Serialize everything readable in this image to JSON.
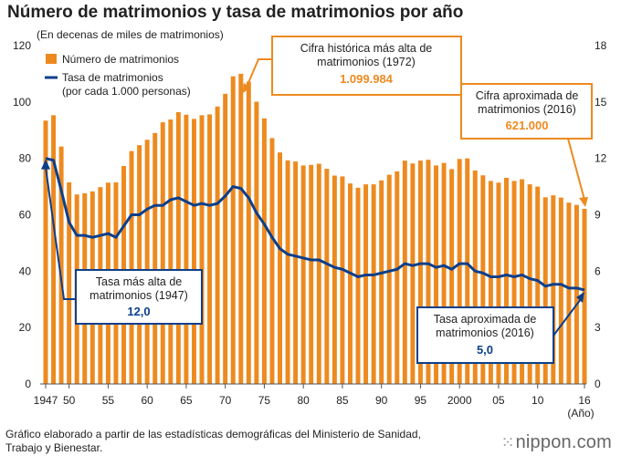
{
  "title": "Número de matrimonios y tasa de matrimonios por año",
  "source": "Gráfico elaborado a partir de las estadísticas demográficas del Ministerio de Sanidad, Trabajo y Bienestar.",
  "brand": "nippon.com",
  "colors": {
    "bar": "#ed8a1f",
    "line": "#0b3f8c",
    "axis": "#555555"
  },
  "chart_data": {
    "type": "bar",
    "title": "Número de matrimonios y tasa de matrimonios por año",
    "ylabel": "(En decenas de miles de matrimonios)",
    "y2label": "",
    "xlabel": "(Año)",
    "ylim": [
      0,
      120
    ],
    "y2lim": [
      0,
      18
    ],
    "yticks": [
      "0",
      "20",
      "40",
      "60",
      "80",
      "100",
      "120"
    ],
    "y2ticks": [
      "0",
      "3",
      "6",
      "9",
      "12",
      "15",
      "18"
    ],
    "x": [
      1947,
      1948,
      1949,
      1950,
      1951,
      1952,
      1953,
      1954,
      1955,
      1956,
      1957,
      1958,
      1959,
      1960,
      1961,
      1962,
      1963,
      1964,
      1965,
      1966,
      1967,
      1968,
      1969,
      1970,
      1971,
      1972,
      1973,
      1974,
      1975,
      1976,
      1977,
      1978,
      1979,
      1980,
      1981,
      1982,
      1983,
      1984,
      1985,
      1986,
      1987,
      1988,
      1989,
      1990,
      1991,
      1992,
      1993,
      1994,
      1995,
      1996,
      1997,
      1998,
      1999,
      2000,
      2001,
      2002,
      2003,
      2004,
      2005,
      2006,
      2007,
      2008,
      2009,
      2010,
      2011,
      2012,
      2013,
      2014,
      2015,
      2016
    ],
    "xtick_labels": [
      {
        "year": 1947,
        "label": "1947"
      },
      {
        "year": 1950,
        "label": "50"
      },
      {
        "year": 1955,
        "label": "55"
      },
      {
        "year": 1960,
        "label": "60"
      },
      {
        "year": 1965,
        "label": "65"
      },
      {
        "year": 1970,
        "label": "70"
      },
      {
        "year": 1975,
        "label": "75"
      },
      {
        "year": 1980,
        "label": "80"
      },
      {
        "year": 1985,
        "label": "85"
      },
      {
        "year": 1990,
        "label": "90"
      },
      {
        "year": 1995,
        "label": "95"
      },
      {
        "year": 2000,
        "label": "2000"
      },
      {
        "year": 2005,
        "label": "05"
      },
      {
        "year": 2010,
        "label": "10"
      },
      {
        "year": 2016,
        "label": "16"
      }
    ],
    "series": [
      {
        "name": "Número de matrimonios",
        "type": "bar",
        "axis": "left",
        "values": [
          93.4,
          95.3,
          84.2,
          71.5,
          67.2,
          67.6,
          68.3,
          69.8,
          71.4,
          71.5,
          77.3,
          82.6,
          84.7,
          86.6,
          89.0,
          92.8,
          93.8,
          96.4,
          95.5,
          94.0,
          95.3,
          95.6,
          98.4,
          102.9,
          109.1,
          110.0,
          107.2,
          100.1,
          94.2,
          87.2,
          82.1,
          79.3,
          78.9,
          77.5,
          77.7,
          78.1,
          76.3,
          73.9,
          73.6,
          71.1,
          69.6,
          70.8,
          70.8,
          72.2,
          74.2,
          75.4,
          79.2,
          78.2,
          79.2,
          79.5,
          77.5,
          78.4,
          76.2,
          79.8,
          80.0,
          75.7,
          74.0,
          72.0,
          71.4,
          73.1,
          72.0,
          72.6,
          70.8,
          70.0,
          66.2,
          66.9,
          66.1,
          64.3,
          63.5,
          62.1
        ]
      },
      {
        "name": "Tasa de matrimonios (por cada 1.000 personas)",
        "type": "line",
        "axis": "right",
        "values": [
          12.0,
          11.9,
          10.3,
          8.6,
          7.9,
          7.9,
          7.8,
          7.9,
          8.0,
          7.8,
          8.4,
          9.0,
          9.0,
          9.3,
          9.5,
          9.5,
          9.8,
          9.9,
          9.7,
          9.5,
          9.6,
          9.5,
          9.6,
          10.0,
          10.5,
          10.4,
          9.9,
          9.1,
          8.5,
          7.8,
          7.2,
          6.9,
          6.8,
          6.7,
          6.6,
          6.6,
          6.4,
          6.2,
          6.1,
          5.9,
          5.7,
          5.8,
          5.8,
          5.9,
          6.0,
          6.1,
          6.4,
          6.3,
          6.4,
          6.4,
          6.2,
          6.3,
          6.1,
          6.4,
          6.4,
          6.0,
          5.9,
          5.7,
          5.7,
          5.8,
          5.7,
          5.8,
          5.6,
          5.5,
          5.2,
          5.3,
          5.3,
          5.1,
          5.1,
          5.0
        ]
      }
    ],
    "legend": {
      "position": "top-left",
      "items": [
        {
          "label": "Número de matrimonios",
          "kind": "bar"
        },
        {
          "label": "Tasa de matrimonios",
          "label2": "(por cada 1.000 personas)",
          "kind": "line"
        }
      ]
    },
    "annotations": {
      "peak_count": {
        "line1": "Cifra histórica más alta de",
        "line2": "matrimonios (1972)",
        "value": "1.099.984",
        "year": 1972
      },
      "latest_count": {
        "line1": "Cifra aproximada de",
        "line2": "matrimonios (2016)",
        "value": "621.000",
        "year": 2016
      },
      "peak_rate": {
        "line1": "Tasa más alta de",
        "line2": "matrimonios (1947)",
        "value": "12,0",
        "year": 1947
      },
      "latest_rate": {
        "line1": "Tasa aproximada de",
        "line2": "matrimonios (2016)",
        "value": "5,0",
        "year": 2016
      }
    }
  }
}
